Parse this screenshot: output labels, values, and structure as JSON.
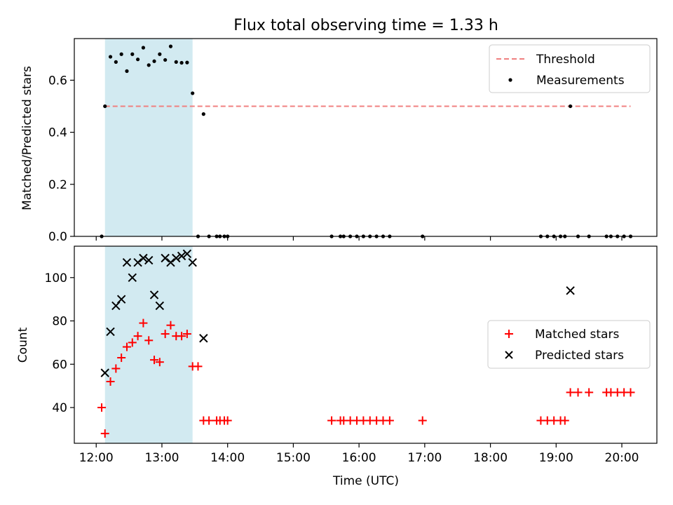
{
  "chart_data": {
    "type": "scatter",
    "title": "Flux total observing time = 1.33 h",
    "xlabel": "Time (UTC)",
    "x_ticks": [
      "12:00",
      "13:00",
      "14:00",
      "15:00",
      "16:00",
      "17:00",
      "18:00",
      "19:00",
      "20:00"
    ],
    "x_range": [
      "11:40",
      "20:32"
    ],
    "shaded_span": [
      "12:08",
      "13:28"
    ],
    "colors": {
      "shade": "#add8e6",
      "threshold": "#f08080",
      "matched": "#ff0000",
      "predicted": "#000000",
      "measurement": "#000000"
    },
    "top": {
      "ylabel": "Matched/Predicted stars",
      "ylim": [
        0,
        0.76
      ],
      "y_ticks": [
        "0.0",
        "0.2",
        "0.4",
        "0.6"
      ],
      "legend": {
        "position": "top-right",
        "entries": [
          "Threshold",
          "Measurements"
        ]
      },
      "threshold": {
        "name": "Threshold",
        "y": 0.5,
        "x_start": "12:08",
        "x_end": "20:08"
      },
      "measurements": {
        "name": "Measurements",
        "points": [
          [
            "12:05",
            0.0
          ],
          [
            "12:08",
            0.5
          ],
          [
            "12:13",
            0.69
          ],
          [
            "12:18",
            0.67
          ],
          [
            "12:23",
            0.7
          ],
          [
            "12:28",
            0.635
          ],
          [
            "12:33",
            0.7
          ],
          [
            "12:38",
            0.68
          ],
          [
            "12:43",
            0.725
          ],
          [
            "12:48",
            0.658
          ],
          [
            "12:53",
            0.673
          ],
          [
            "12:58",
            0.7
          ],
          [
            "13:03",
            0.678
          ],
          [
            "13:08",
            0.73
          ],
          [
            "13:13",
            0.67
          ],
          [
            "13:18",
            0.667
          ],
          [
            "13:23",
            0.668
          ],
          [
            "13:28",
            0.55
          ],
          [
            "13:33",
            0.0
          ],
          [
            "13:38",
            0.47
          ],
          [
            "13:43",
            0.0
          ],
          [
            "13:50",
            0.0
          ],
          [
            "13:53",
            0.0
          ],
          [
            "13:57",
            0.0
          ],
          [
            "14:00",
            0.0
          ],
          [
            "15:35",
            0.0
          ],
          [
            "15:43",
            0.0
          ],
          [
            "15:46",
            0.0
          ],
          [
            "15:52",
            0.0
          ],
          [
            "15:58",
            0.0
          ],
          [
            "16:04",
            0.0
          ],
          [
            "16:10",
            0.0
          ],
          [
            "16:16",
            0.0
          ],
          [
            "16:22",
            0.0
          ],
          [
            "16:28",
            0.0
          ],
          [
            "16:58",
            0.0
          ],
          [
            "18:46",
            0.0
          ],
          [
            "18:52",
            0.0
          ],
          [
            "18:58",
            0.0
          ],
          [
            "19:04",
            0.0
          ],
          [
            "19:08",
            0.0
          ],
          [
            "19:13",
            0.5
          ],
          [
            "19:20",
            0.0
          ],
          [
            "19:30",
            0.0
          ],
          [
            "19:46",
            0.0
          ],
          [
            "19:50",
            0.0
          ],
          [
            "19:56",
            0.0
          ],
          [
            "20:02",
            0.0
          ],
          [
            "20:08",
            0.0
          ]
        ]
      }
    },
    "bottom": {
      "ylabel": "Count",
      "ylim": [
        23.5,
        114.5
      ],
      "y_ticks": [
        "40",
        "60",
        "80",
        "100"
      ],
      "legend": {
        "position": "center-right",
        "entries": [
          "Matched stars",
          "Predicted stars"
        ]
      },
      "series": [
        {
          "name": "Matched stars",
          "marker": "+",
          "points": [
            [
              "12:05",
              40
            ],
            [
              "12:08",
              28
            ],
            [
              "12:13",
              52
            ],
            [
              "12:18",
              58
            ],
            [
              "12:23",
              63
            ],
            [
              "12:28",
              68
            ],
            [
              "12:33",
              70
            ],
            [
              "12:38",
              73
            ],
            [
              "12:43",
              79
            ],
            [
              "12:48",
              71
            ],
            [
              "12:53",
              62
            ],
            [
              "12:58",
              61
            ],
            [
              "13:03",
              74
            ],
            [
              "13:08",
              78
            ],
            [
              "13:13",
              73
            ],
            [
              "13:18",
              73
            ],
            [
              "13:23",
              74
            ],
            [
              "13:28",
              59
            ],
            [
              "13:33",
              59
            ],
            [
              "13:38",
              34
            ],
            [
              "13:43",
              34
            ],
            [
              "13:50",
              34
            ],
            [
              "13:53",
              34
            ],
            [
              "13:57",
              34
            ],
            [
              "14:00",
              34
            ],
            [
              "15:35",
              34
            ],
            [
              "15:43",
              34
            ],
            [
              "15:46",
              34
            ],
            [
              "15:52",
              34
            ],
            [
              "15:58",
              34
            ],
            [
              "16:04",
              34
            ],
            [
              "16:10",
              34
            ],
            [
              "16:16",
              34
            ],
            [
              "16:22",
              34
            ],
            [
              "16:28",
              34
            ],
            [
              "16:58",
              34
            ],
            [
              "18:46",
              34
            ],
            [
              "18:52",
              34
            ],
            [
              "18:58",
              34
            ],
            [
              "19:04",
              34
            ],
            [
              "19:08",
              34
            ],
            [
              "19:13",
              47
            ],
            [
              "19:20",
              47
            ],
            [
              "19:30",
              47
            ],
            [
              "19:46",
              47
            ],
            [
              "19:50",
              47
            ],
            [
              "19:56",
              47
            ],
            [
              "20:02",
              47
            ],
            [
              "20:08",
              47
            ]
          ]
        },
        {
          "name": "Predicted stars",
          "marker": "x",
          "points": [
            [
              "12:08",
              56
            ],
            [
              "12:13",
              75
            ],
            [
              "12:18",
              87
            ],
            [
              "12:23",
              90
            ],
            [
              "12:28",
              107
            ],
            [
              "12:33",
              100
            ],
            [
              "12:38",
              107
            ],
            [
              "12:43",
              109
            ],
            [
              "12:48",
              108
            ],
            [
              "12:53",
              92
            ],
            [
              "12:58",
              87
            ],
            [
              "13:03",
              109
            ],
            [
              "13:08",
              107
            ],
            [
              "13:13",
              109
            ],
            [
              "13:18",
              110
            ],
            [
              "13:23",
              111
            ],
            [
              "13:28",
              107
            ],
            [
              "13:38",
              72
            ],
            [
              "19:13",
              94
            ]
          ]
        }
      ]
    }
  }
}
